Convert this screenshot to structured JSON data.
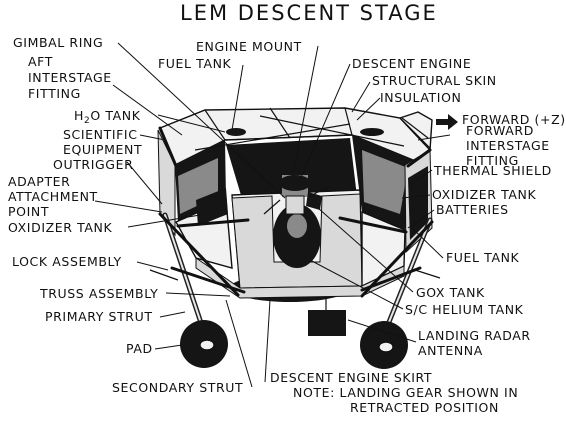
{
  "title": "LEM DESCENT STAGE",
  "labels": {
    "gimbal_ring": "GIMBAL RING",
    "engine_mount": "ENGINE MOUNT",
    "fuel_tank_top": "FUEL TANK",
    "descent_engine": "DESCENT ENGINE",
    "aft_interstage_1": "AFT",
    "aft_interstage_2": "INTERSTAGE",
    "aft_interstage_3": "FITTING",
    "structural_skin": "STRUCTURAL SKIN",
    "insulation": "INSULATION",
    "h2o_tank_h": "H",
    "h2o_tank_sub": "2",
    "h2o_tank_rest": "O TANK",
    "forward": "FORWARD (+Z)",
    "scientific_1": "SCIENTIFIC",
    "scientific_2": "EQUIPMENT",
    "fwd_interstage_1": "FORWARD",
    "fwd_interstage_2": "INTERSTAGE",
    "fwd_interstage_3": "FITTING",
    "outrigger": "OUTRIGGER",
    "thermal_shield": "THERMAL SHIELD",
    "adapter_1": "ADAPTER",
    "adapter_2": "ATTACHMENT",
    "adapter_3": "POINT",
    "oxidizer_tank_right": "OXIDIZER TANK",
    "batteries": "BATTERIES",
    "oxidizer_tank_left": "OXIDIZER TANK",
    "fuel_tank_right": "FUEL TANK",
    "lock_assembly": "LOCK ASSEMBLY",
    "gox_tank": "GOX TANK",
    "truss_assembly": "TRUSS ASSEMBLY",
    "sc_helium_tank": "S/C HELIUM TANK",
    "primary_strut": "PRIMARY STRUT",
    "landing_radar_1": "LANDING RADAR",
    "landing_radar_2": "ANTENNA",
    "pad": "PAD",
    "secondary_strut": "SECONDARY STRUT",
    "descent_engine_skirt": "DESCENT ENGINE SKIRT",
    "note_1": "NOTE: LANDING GEAR SHOWN IN",
    "note_2": "RETRACTED POSITION"
  },
  "icons": {
    "forward_arrow": "right-arrow"
  }
}
